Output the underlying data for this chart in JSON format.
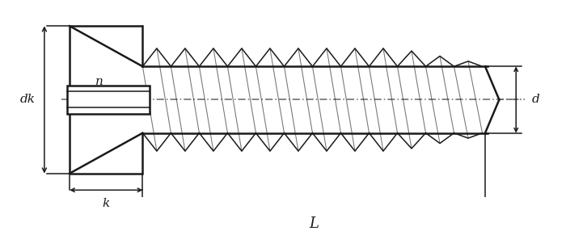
{
  "bg_color": "#ffffff",
  "line_color": "#1a1a1a",
  "centerline_color": "#666666",
  "figsize": [
    7.0,
    2.86
  ],
  "dpi": 100,
  "xlim": [
    0,
    10
  ],
  "ylim": [
    0,
    4.1
  ],
  "head_left_x": 1.2,
  "head_right_x": 2.5,
  "head_top_y": 3.6,
  "head_bot_y": 0.5,
  "head_mid_y": 2.05,
  "shank_top_y": 2.75,
  "shank_bot_y": 1.35,
  "shank_end_x": 8.6,
  "tip_x": 8.85,
  "thread_start_x": 2.5,
  "thread_end_x": 8.55,
  "n_threads": 12,
  "slot_left_x": 1.15,
  "slot_right_x": 2.62,
  "slot_top_y": 2.35,
  "slot_bot_y": 1.75,
  "slot_inner_top_y": 2.22,
  "slot_inner_bot_y": 1.88,
  "labels": {
    "dk": "dk",
    "n": "n",
    "k": "k",
    "L": "L",
    "d": "d"
  }
}
